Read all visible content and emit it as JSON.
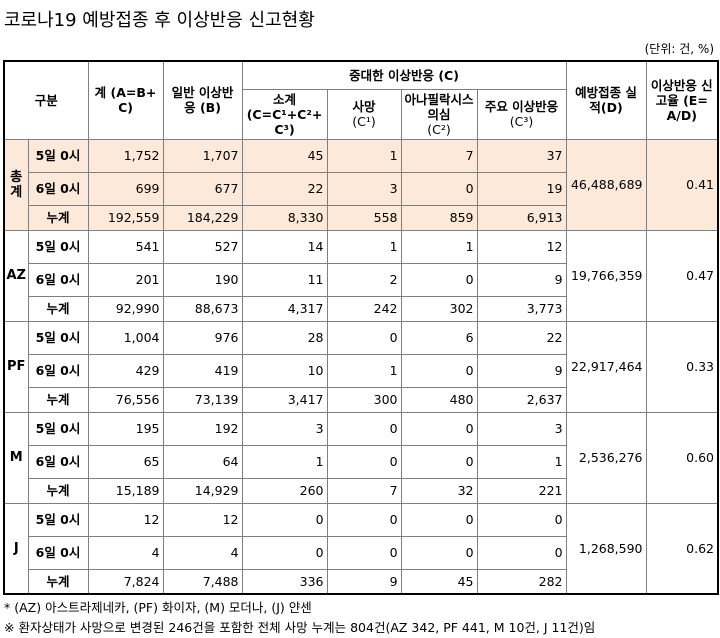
{
  "title": "코로나19 예방접종 후 이상반응 신고현황",
  "unit": "(단위: 건, %)",
  "table": {
    "header": {
      "group": "구분",
      "total": "계 (A=B+C)",
      "general": "일반 이상반응 (B)",
      "serious": "중대한 이상반응 (C)",
      "subtotal": "소계",
      "subtotal_formula": "(C=C¹+C²+C³)",
      "death": "사망",
      "death_code": "(C¹)",
      "anaphylaxis": "아나필락시스 의심",
      "anaphylaxis_code": "(C²)",
      "major": "주요 이상반응",
      "major_code": "(C³)",
      "vaccinations": "예방접종 실적(D)",
      "rate": "이상반응 신고율 (E=A/D)"
    },
    "groups": [
      {
        "name": "총계",
        "vaccinations": "46,488,689",
        "rate": "0.41",
        "rows": [
          {
            "label": "5일 0시",
            "values": [
              "1,752",
              "1,707",
              "45",
              "1",
              "7",
              "37"
            ]
          },
          {
            "label": "6일 0시",
            "values": [
              "699",
              "677",
              "22",
              "3",
              "0",
              "19"
            ]
          },
          {
            "label": "누계",
            "values": [
              "192,559",
              "184,229",
              "8,330",
              "558",
              "859",
              "6,913"
            ]
          }
        ]
      },
      {
        "name": "AZ",
        "vaccinations": "19,766,359",
        "rate": "0.47",
        "rows": [
          {
            "label": "5일 0시",
            "values": [
              "541",
              "527",
              "14",
              "1",
              "1",
              "12"
            ]
          },
          {
            "label": "6일 0시",
            "values": [
              "201",
              "190",
              "11",
              "2",
              "0",
              "9"
            ]
          },
          {
            "label": "누계",
            "values": [
              "92,990",
              "88,673",
              "4,317",
              "242",
              "302",
              "3,773"
            ]
          }
        ]
      },
      {
        "name": "PF",
        "vaccinations": "22,917,464",
        "rate": "0.33",
        "rows": [
          {
            "label": "5일 0시",
            "values": [
              "1,004",
              "976",
              "28",
              "0",
              "6",
              "22"
            ]
          },
          {
            "label": "6일 0시",
            "values": [
              "429",
              "419",
              "10",
              "1",
              "0",
              "9"
            ]
          },
          {
            "label": "누계",
            "values": [
              "76,556",
              "73,139",
              "3,417",
              "300",
              "480",
              "2,637"
            ]
          }
        ]
      },
      {
        "name": "M",
        "vaccinations": "2,536,276",
        "rate": "0.60",
        "rows": [
          {
            "label": "5일 0시",
            "values": [
              "195",
              "192",
              "3",
              "0",
              "0",
              "3"
            ]
          },
          {
            "label": "6일 0시",
            "values": [
              "65",
              "64",
              "1",
              "0",
              "0",
              "1"
            ]
          },
          {
            "label": "누계",
            "values": [
              "15,189",
              "14,929",
              "260",
              "7",
              "32",
              "221"
            ]
          }
        ]
      },
      {
        "name": "J",
        "vaccinations": "1,268,590",
        "rate": "0.62",
        "rows": [
          {
            "label": "5일 0시",
            "values": [
              "12",
              "12",
              "0",
              "0",
              "0",
              "0"
            ]
          },
          {
            "label": "6일 0시",
            "values": [
              "4",
              "4",
              "0",
              "0",
              "0",
              "0"
            ]
          },
          {
            "label": "누계",
            "values": [
              "7,824",
              "7,488",
              "336",
              "9",
              "45",
              "282"
            ]
          }
        ]
      }
    ]
  },
  "notes": [
    "* (AZ) 아스트라제네카, (PF) 화이자, (M) 모더나, (J) 얀센",
    "※ 환자상태가 사망으로 변경된 246건을 포함한 전체 사망 누계는 804건(AZ 342, PF 441, M 10건, J 11건)임"
  ]
}
